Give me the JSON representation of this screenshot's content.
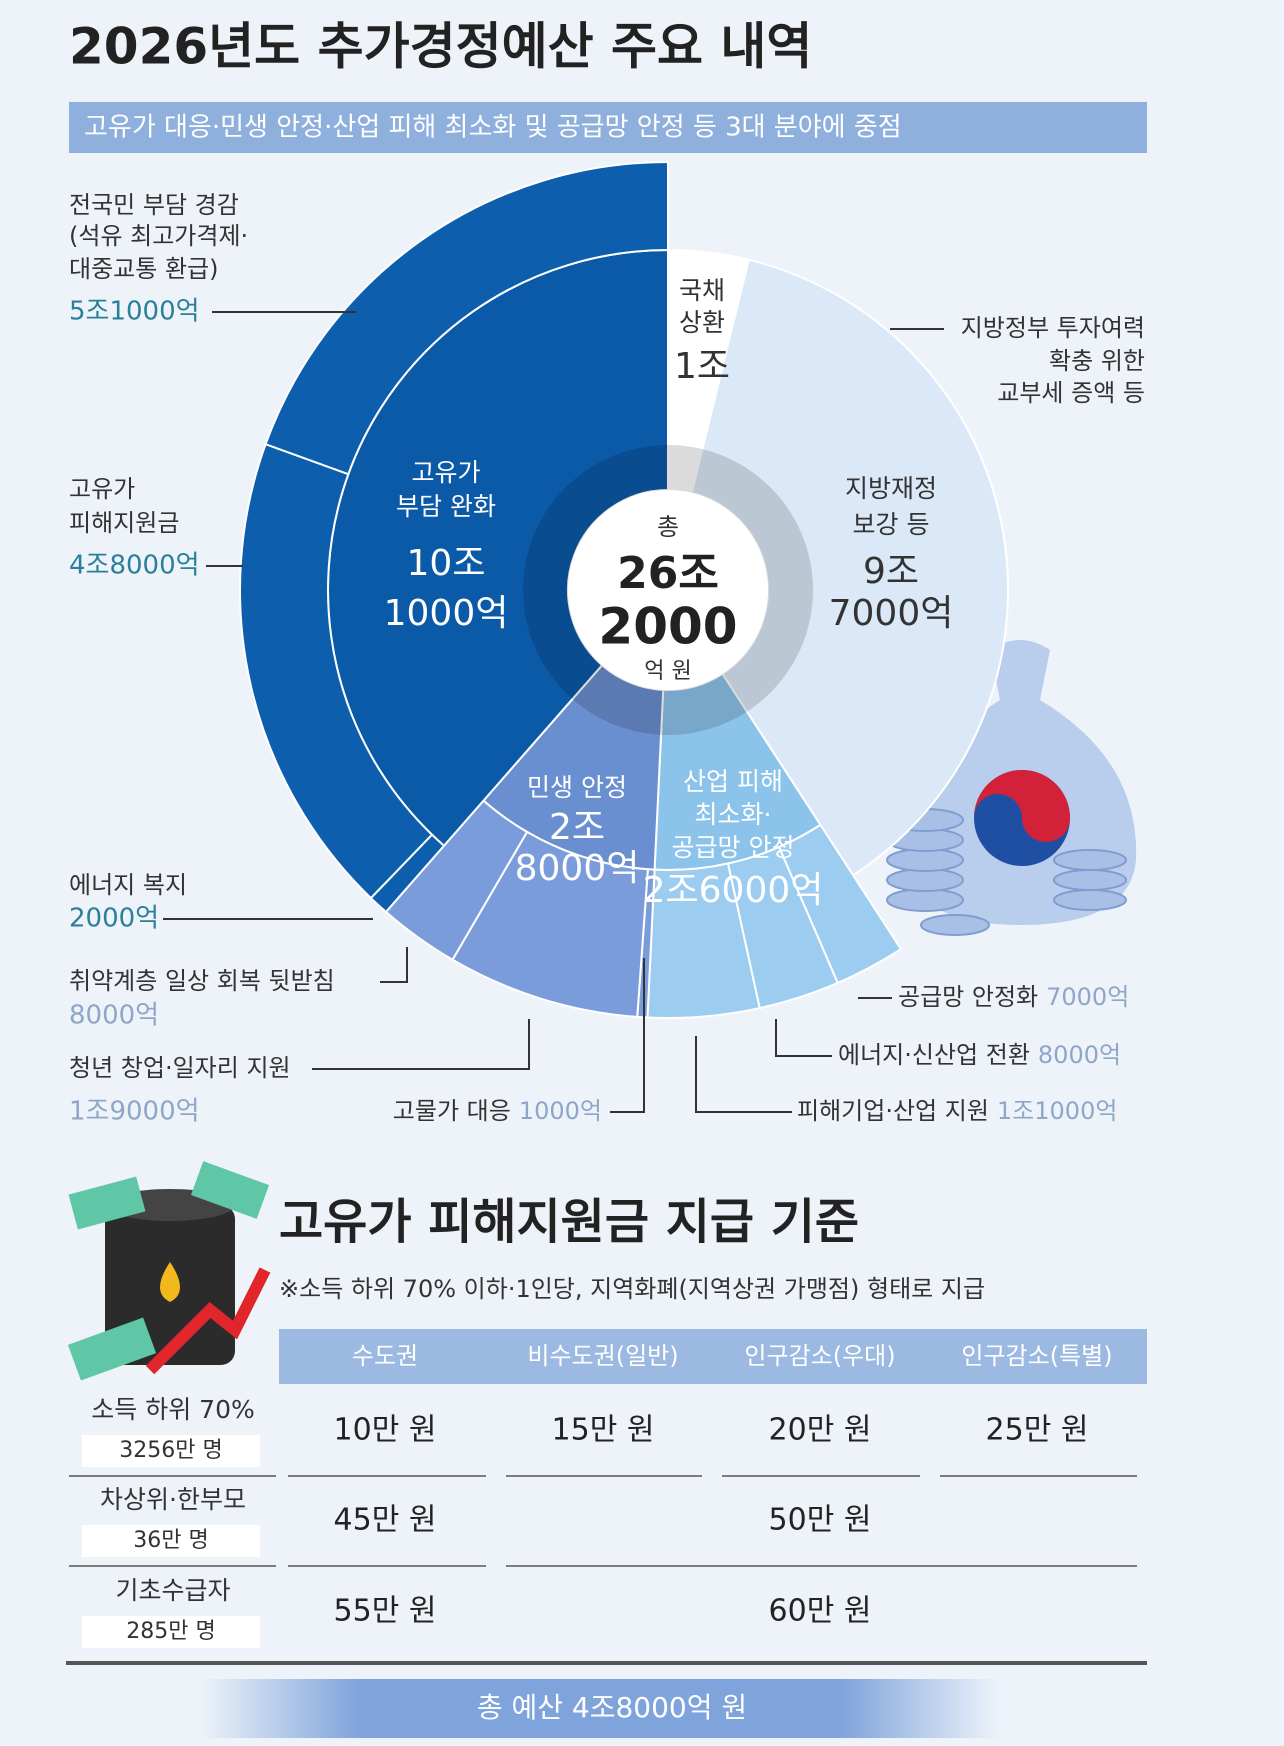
{
  "title": "2026년도 추가경정예산 주요 내역",
  "subtitle": "고유가 대응·민생 안정·산업 피해 최소화 및 공급망 안정 등 3대 분야에 중점",
  "chart_data": {
    "type": "sunburst",
    "center_text": "총",
    "total": 262000,
    "total_labels": [
      "26조",
      "2000",
      "억 원"
    ],
    "groups": [
      {
        "name": [
          "국채",
          "상환"
        ],
        "value": 10000,
        "value_labels": [
          "1조"
        ],
        "color": "#ffffff"
      },
      {
        "name": [
          "지방재정",
          "보강 등"
        ],
        "value": 97000,
        "value_labels": [
          "9조",
          "7000억"
        ],
        "color": "#dbe8f7",
        "note": [
          "지방정부 투자여력",
          "확충 위한",
          "교부세 증액 등"
        ]
      },
      {
        "name": [
          "산업 피해",
          "최소화·",
          "공급망 안정"
        ],
        "value": 26000,
        "value_labels": [
          "2조6000억"
        ],
        "color": "#8cc3eb",
        "children": [
          {
            "name": [
              "공급망 안정화"
            ],
            "value": 7000,
            "value_label": "7000억",
            "color": "#9ccdf0"
          },
          {
            "name": [
              "에너지·신산업 전환"
            ],
            "value": 8000,
            "value_label": "8000억",
            "color": "#9ccdf0"
          },
          {
            "name": [
              "피해기업·산업 지원"
            ],
            "value": 11000,
            "value_label": "1조1000억",
            "color": "#9ccdf0"
          }
        ]
      },
      {
        "name": [
          "민생 안정"
        ],
        "value": 28000,
        "value_labels": [
          "2조",
          "8000억"
        ],
        "color": "#6a8fd0",
        "children": [
          {
            "name": [
              "고물가 대응"
            ],
            "value": 1000,
            "value_label": "1000억",
            "color": "#7b9cdb"
          },
          {
            "name": [
              "청년 창업·일자리 지원"
            ],
            "value": 19000,
            "value_label": "1조9000억",
            "color": "#7b9cdb"
          },
          {
            "name": [
              "취약계층 일상 회복 뒷받침"
            ],
            "value": 8000,
            "value_label": "8000억",
            "color": "#7b9cdb"
          }
        ]
      },
      {
        "name": [
          "고유가",
          "부담 완화"
        ],
        "value": 101000,
        "value_labels": [
          "10조",
          "1000억"
        ],
        "color": "#0b5aa8",
        "children": [
          {
            "name": [
              "에너지 복지"
            ],
            "value": 2000,
            "value_label": "2000억",
            "color": "#0d5fae"
          },
          {
            "name": [
              "고유가",
              "피해지원금"
            ],
            "value": 48000,
            "value_label": "4조8000억",
            "color": "#0d5fae"
          },
          {
            "name": [
              "전국민 부담 경감",
              "(석유 최고가격제·",
              "대중교통 환급)"
            ],
            "value": 51000,
            "value_label": "5조1000억",
            "color": "#0d5fae"
          }
        ]
      }
    ]
  },
  "payment": {
    "title": "고유가 피해지원금 지급 기준",
    "note": "※소득 하위 70% 이하·1인당, 지역화폐(지역상권 가맹점) 형태로 지급",
    "columns": [
      "수도권",
      "비수도권(일반)",
      "인구감소(우대)",
      "인구감소(특별)"
    ],
    "rows": [
      {
        "label": "소득 하위 70%",
        "count": "3256만 명",
        "cells": [
          "10만 원",
          "15만 원",
          "20만 원",
          "25만 원"
        ]
      },
      {
        "label": "차상위·한부모",
        "count": "36만 명",
        "cells": [
          "45만 원",
          "50만 원"
        ]
      },
      {
        "label": "기초수급자",
        "count": "285만 명",
        "cells": [
          "55만 원",
          "60만 원"
        ]
      }
    ],
    "total": "총 예산 4조8000억 원"
  }
}
